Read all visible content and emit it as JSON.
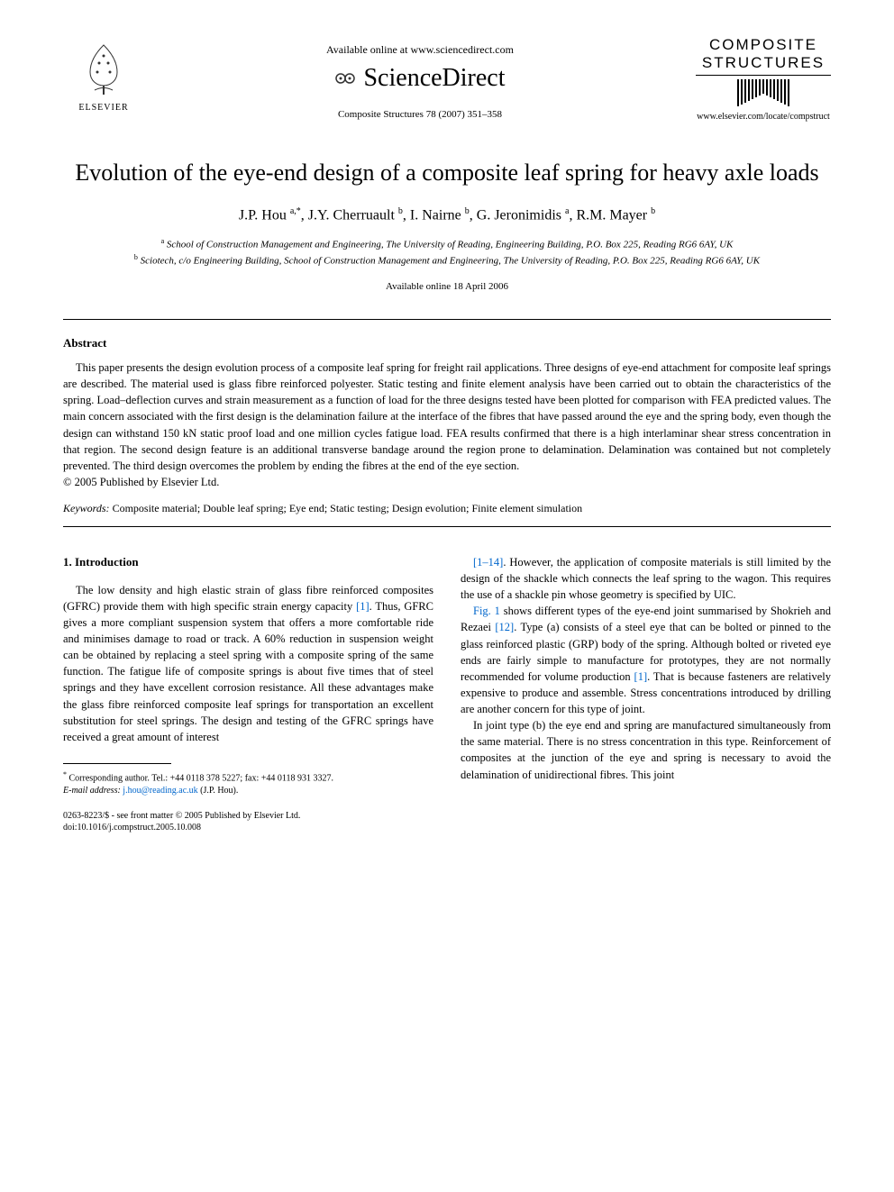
{
  "header": {
    "elsevier_label": "ELSEVIER",
    "available_online": "Available online at www.sciencedirect.com",
    "sciencedirect": "ScienceDirect",
    "journal_ref": "Composite Structures 78 (2007) 351–358",
    "journal_title_line1": "COMPOSITE",
    "journal_title_line2": "STRUCTURES",
    "journal_url": "www.elsevier.com/locate/compstruct"
  },
  "article": {
    "title": "Evolution of the eye-end design of a composite leaf spring for heavy axle loads",
    "authors_html": "J.P. Hou <span class=\"sup\">a,*</span>, J.Y. Cherruault <span class=\"sup\">b</span>, I. Nairne <span class=\"sup\">b</span>, G. Jeronimidis <span class=\"sup\">a</span>, R.M. Mayer <span class=\"sup\">b</span>",
    "affiliation_a": "School of Construction Management and Engineering, The University of Reading, Engineering Building, P.O. Box 225, Reading RG6 6AY, UK",
    "affiliation_b": "Sciotech, c/o Engineering Building, School of Construction Management and Engineering, The University of Reading, P.O. Box 225, Reading RG6 6AY, UK",
    "date_line": "Available online 18 April 2006"
  },
  "abstract": {
    "heading": "Abstract",
    "text": "This paper presents the design evolution process of a composite leaf spring for freight rail applications. Three designs of eye-end attachment for composite leaf springs are described. The material used is glass fibre reinforced polyester. Static testing and finite element analysis have been carried out to obtain the characteristics of the spring. Load–deflection curves and strain measurement as a function of load for the three designs tested have been plotted for comparison with FEA predicted values. The main concern associated with the first design is the delamination failure at the interface of the fibres that have passed around the eye and the spring body, even though the design can withstand 150 kN static proof load and one million cycles fatigue load. FEA results confirmed that there is a high interlaminar shear stress concentration in that region. The second design feature is an additional transverse bandage around the region prone to delamination. Delamination was contained but not completely prevented. The third design overcomes the problem by ending the fibres at the end of the eye section.",
    "copyright": "© 2005 Published by Elsevier Ltd.",
    "keywords_label": "Keywords:",
    "keywords": "Composite material; Double leaf spring; Eye end; Static testing; Design evolution; Finite element simulation"
  },
  "body": {
    "section1_heading": "1. Introduction",
    "col1_p1": "The low density and high elastic strain of glass fibre reinforced composites (GFRC) provide them with high specific strain energy capacity [1]. Thus, GFRC gives a more compliant suspension system that offers a more comfortable ride and minimises damage to road or track. A 60% reduction in suspension weight can be obtained by replacing a steel spring with a composite spring of the same function. The fatigue life of composite springs is about five times that of steel springs and they have excellent corrosion resistance. All these advantages make the glass fibre reinforced composite leaf springs for transportation an excellent substitution for steel springs. The design and testing of the GFRC springs have received a great amount of interest",
    "col2_p1": "[1–14]. However, the application of composite materials is still limited by the design of the shackle which connects the leaf spring to the wagon. This requires the use of a shackle pin whose geometry is specified by UIC.",
    "col2_p2": "Fig. 1 shows different types of the eye-end joint summarised by Shokrieh and Rezaei [12]. Type (a) consists of a steel eye that can be bolted or pinned to the glass reinforced plastic (GRP) body of the spring. Although bolted or riveted eye ends are fairly simple to manufacture for prototypes, they are not normally recommended for volume production [1]. That is because fasteners are relatively expensive to produce and assemble. Stress concentrations introduced by drilling are another concern for this type of joint.",
    "col2_p3": "In joint type (b) the eye end and spring are manufactured simultaneously from the same material. There is no stress concentration in this type. Reinforcement of composites at the junction of the eye and spring is necessary to avoid the delamination of unidirectional fibres. This joint"
  },
  "footnote": {
    "corresponding": "Corresponding author. Tel.: +44 0118 378 5227; fax: +44 0118 931 3327.",
    "email_label": "E-mail address:",
    "email": "j.hou@reading.ac.uk",
    "email_author": "(J.P. Hou)."
  },
  "footer": {
    "line1": "0263-8223/$ - see front matter © 2005 Published by Elsevier Ltd.",
    "line2": "doi:10.1016/j.compstruct.2005.10.008"
  },
  "ref_links": {
    "r1": "[1]",
    "r1_14": "[1–14]",
    "fig1": "Fig. 1",
    "r12": "[12]"
  }
}
